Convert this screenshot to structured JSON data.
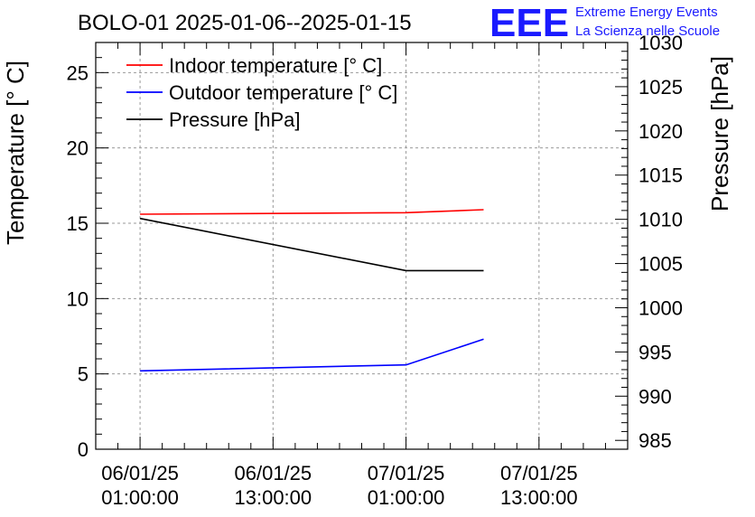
{
  "chart_data": {
    "type": "line",
    "title": "BOLO-01 2025-01-06--2025-01-15",
    "ylabel_left": "Temperature [° C]",
    "ylabel_right": "Pressure [hPa]",
    "xlim_hours": [
      -4,
      44
    ],
    "ylim_left": [
      0,
      27
    ],
    "ylim_right": [
      984,
      1030
    ],
    "y_ticks_left": [
      0,
      5,
      10,
      15,
      20,
      25
    ],
    "y_ticks_right": [
      985,
      990,
      995,
      1000,
      1005,
      1010,
      1015,
      1020,
      1025,
      1030
    ],
    "x_ticks": [
      {
        "hour": 0,
        "line1": "06/01/25",
        "line2": "01:00:00"
      },
      {
        "hour": 12,
        "line1": "06/01/25",
        "line2": "13:00:00"
      },
      {
        "hour": 24,
        "line1": "07/01/25",
        "line2": "01:00:00"
      },
      {
        "hour": 36,
        "line1": "07/01/25",
        "line2": "13:00:00"
      }
    ],
    "grid": true,
    "legend_position": "top-left",
    "series": [
      {
        "name": "Indoor temperature [° C]",
        "color": "#ff0000",
        "axis": "left",
        "x": [
          0,
          24,
          31
        ],
        "y": [
          15.6,
          15.7,
          15.9
        ]
      },
      {
        "name": "Outdoor temperature [° C]",
        "color": "#0000ff",
        "axis": "left",
        "x": [
          0,
          24,
          31
        ],
        "y": [
          5.2,
          5.6,
          7.3
        ]
      },
      {
        "name": "Pressure [hPa]",
        "color": "#000000",
        "axis": "right",
        "x": [
          0,
          24,
          31
        ],
        "y": [
          1010.1,
          1004.2,
          1004.2
        ]
      }
    ]
  },
  "logo": {
    "mark": "EEE",
    "line1": "Extreme Energy Events",
    "line2": "La Scienza nelle Scuole"
  }
}
